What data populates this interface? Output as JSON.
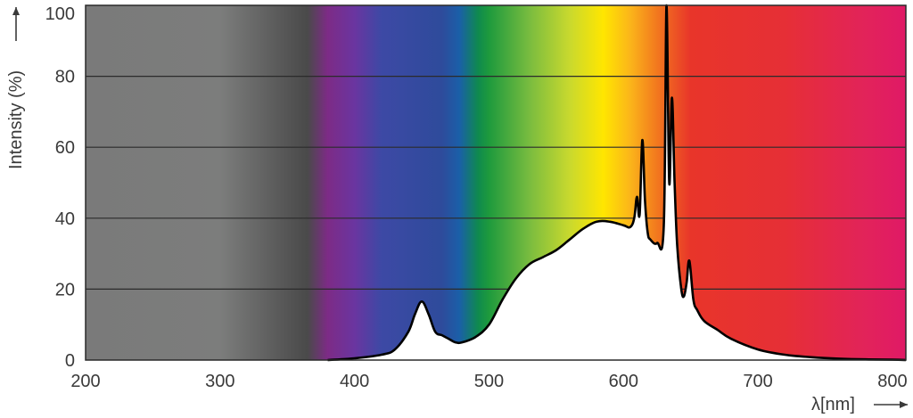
{
  "chart_data": {
    "type": "area",
    "title": "",
    "xlabel": "λ[nm]",
    "ylabel": "Intensity (%)",
    "xlim": [
      200,
      810
    ],
    "ylim": [
      0,
      100
    ],
    "x_ticks": [
      200,
      300,
      400,
      500,
      600,
      700,
      800
    ],
    "y_ticks": [
      0,
      20,
      40,
      60,
      80,
      100
    ],
    "grid": "horizontal",
    "legend": "none",
    "background": "spectrum gradient (grey ultraviolet, violet to red visible, magenta infrared)",
    "fill_color": "#ffffff",
    "line_color": "#000000",
    "spectrum_stops": [
      {
        "nm": 200,
        "color": "#7a7a7a"
      },
      {
        "nm": 300,
        "color": "#7c7d7c"
      },
      {
        "nm": 350,
        "color": "#555555"
      },
      {
        "nm": 365,
        "color": "#4a4a4a"
      },
      {
        "nm": 380,
        "color": "#7d2b86"
      },
      {
        "nm": 400,
        "color": "#6a35a0"
      },
      {
        "nm": 420,
        "color": "#3d49a5"
      },
      {
        "nm": 465,
        "color": "#2e4b9b"
      },
      {
        "nm": 478,
        "color": "#1a5fa8"
      },
      {
        "nm": 492,
        "color": "#0f8a4e"
      },
      {
        "nm": 500,
        "color": "#1e9a3d"
      },
      {
        "nm": 530,
        "color": "#79bc3f"
      },
      {
        "nm": 560,
        "color": "#c9d92e"
      },
      {
        "nm": 585,
        "color": "#ffe600"
      },
      {
        "nm": 605,
        "color": "#fbb51a"
      },
      {
        "nm": 625,
        "color": "#f2781e"
      },
      {
        "nm": 650,
        "color": "#e8352a"
      },
      {
        "nm": 720,
        "color": "#e62f36"
      },
      {
        "nm": 780,
        "color": "#e2235a"
      },
      {
        "nm": 810,
        "color": "#e01966"
      }
    ],
    "series": [
      {
        "x": [
          380,
          400,
          420,
          430,
          440,
          445,
          450,
          455,
          460,
          465,
          470,
          475,
          480,
          490,
          500,
          510,
          520,
          530,
          540,
          550,
          560,
          570,
          580,
          590,
          600,
          605,
          608,
          610,
          612,
          614,
          616,
          618,
          620,
          625,
          630,
          632,
          634,
          636,
          638,
          640,
          643,
          645,
          647,
          649,
          652,
          655,
          660,
          670,
          680,
          700,
          720,
          740,
          760,
          780,
          800,
          810
        ],
        "y": [
          0,
          0.5,
          1.5,
          3,
          8,
          13,
          16.5,
          13,
          8,
          7,
          6,
          5,
          5,
          6.5,
          10,
          17,
          23,
          27,
          29,
          31,
          34,
          37,
          39,
          39,
          38,
          37.5,
          40,
          46,
          41,
          62,
          45,
          36,
          34,
          33,
          38,
          100,
          50,
          74,
          50,
          32,
          20,
          18,
          22,
          28,
          17,
          14,
          11,
          8.5,
          6,
          3,
          1.5,
          0.8,
          0.4,
          0.2,
          0.1,
          0
        ]
      }
    ]
  }
}
